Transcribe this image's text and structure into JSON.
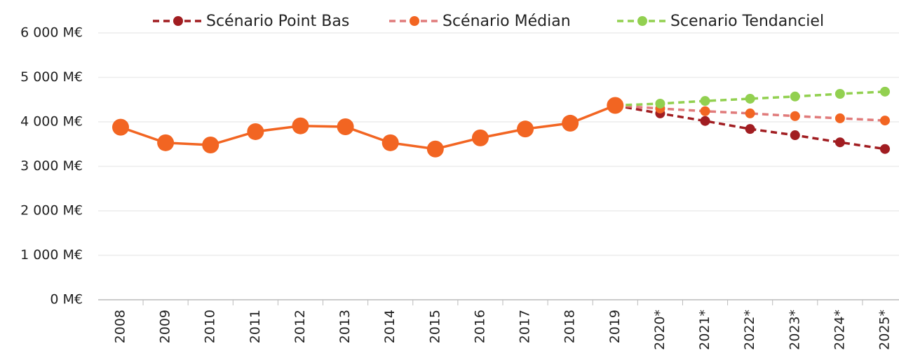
{
  "chart_data": {
    "type": "line",
    "categories": [
      "2008",
      "2009",
      "2010",
      "2011",
      "2012",
      "2013",
      "2014",
      "2015",
      "2016",
      "2017",
      "2018",
      "2019",
      "2020*",
      "2021*",
      "2022*",
      "2023*",
      "2024*",
      "2025*"
    ],
    "series": [
      {
        "color": "#f26522",
        "dash": false,
        "marker_size": 12,
        "values": [
          3880,
          3530,
          3480,
          3780,
          3910,
          3890,
          3530,
          3390,
          3640,
          3840,
          3970,
          4370,
          null,
          null,
          null,
          null,
          null,
          null
        ]
      },
      {
        "name": "Scénario Point Bas",
        "color": "#a11d21",
        "dash": true,
        "marker_size": 7,
        "values": [
          null,
          null,
          null,
          null,
          null,
          null,
          null,
          null,
          null,
          null,
          null,
          4370,
          4190,
          4020,
          3840,
          3700,
          3540,
          3390
        ]
      },
      {
        "name": "Scénario Médian",
        "color": "#e07b7b",
        "marker_color": "#f26522",
        "dash": true,
        "marker_size": 7,
        "values": [
          null,
          null,
          null,
          null,
          null,
          null,
          null,
          null,
          null,
          null,
          null,
          4370,
          4300,
          4240,
          4190,
          4130,
          4080,
          4030
        ]
      },
      {
        "name": "Scenario Tendanciel",
        "color": "#92d050",
        "dash": true,
        "marker_size": 7,
        "values": [
          null,
          null,
          null,
          null,
          null,
          null,
          null,
          null,
          null,
          null,
          null,
          4370,
          4410,
          4470,
          4520,
          4570,
          4630,
          4680
        ]
      }
    ],
    "ylim": [
      0,
      6000
    ],
    "yticks": [
      {
        "value": 0,
        "label": "0 M€"
      },
      {
        "value": 1000,
        "label": "1 000 M€"
      },
      {
        "value": 2000,
        "label": "2 000 M€"
      },
      {
        "value": 3000,
        "label": "3 000 M€"
      },
      {
        "value": 4000,
        "label": "4 000 M€"
      },
      {
        "value": 5000,
        "label": "5 000 M€"
      },
      {
        "value": 6000,
        "label": "6 000 M€"
      }
    ],
    "grid": true,
    "legend": "top"
  }
}
